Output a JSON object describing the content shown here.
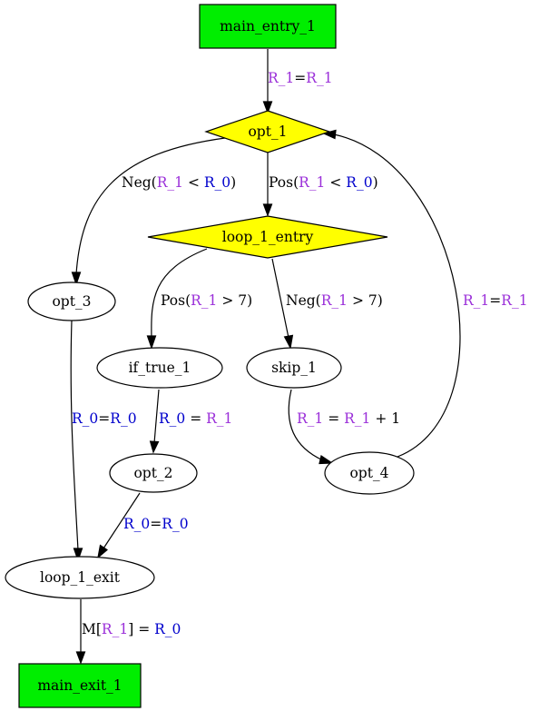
{
  "colors": {
    "entry_exit_fill": "#00ee00",
    "branch_fill": "#ffff00",
    "plain_fill": "#ffffff",
    "var_R1": "#9b30d9",
    "var_R0": "#0000cc",
    "text": "#000000"
  },
  "nodes": {
    "main_entry_1": "main_entry_1",
    "opt_1": "opt_1",
    "loop_1_entry": "loop_1_entry",
    "opt_3": "opt_3",
    "if_true_1": "if_true_1",
    "skip_1": "skip_1",
    "opt_2": "opt_2",
    "opt_4": "opt_4",
    "loop_1_exit": "loop_1_exit",
    "main_exit_1": "main_exit_1"
  },
  "edges": [
    {
      "id": "e1",
      "from": "main_entry_1",
      "to": "opt_1",
      "label": [
        {
          "t": "R_1",
          "c": "var_R1"
        },
        {
          "t": "=",
          "c": "text"
        },
        {
          "t": "R_1",
          "c": "var_R1"
        }
      ]
    },
    {
      "id": "e2",
      "from": "opt_1",
      "to": "opt_3",
      "label": [
        {
          "t": "Neg(",
          "c": "text"
        },
        {
          "t": "R_1",
          "c": "var_R1"
        },
        {
          "t": " < ",
          "c": "text"
        },
        {
          "t": "R_0",
          "c": "var_R0"
        },
        {
          "t": ")",
          "c": "text"
        }
      ]
    },
    {
      "id": "e3",
      "from": "opt_1",
      "to": "loop_1_entry",
      "label": [
        {
          "t": "Pos(",
          "c": "text"
        },
        {
          "t": "R_1",
          "c": "var_R1"
        },
        {
          "t": " < ",
          "c": "text"
        },
        {
          "t": "R_0",
          "c": "var_R0"
        },
        {
          "t": ")",
          "c": "text"
        }
      ]
    },
    {
      "id": "e4",
      "from": "loop_1_entry",
      "to": "if_true_1",
      "label": [
        {
          "t": "Pos(",
          "c": "text"
        },
        {
          "t": "R_1",
          "c": "var_R1"
        },
        {
          "t": " > 7)",
          "c": "text"
        }
      ]
    },
    {
      "id": "e5",
      "from": "loop_1_entry",
      "to": "skip_1",
      "label": [
        {
          "t": "Neg(",
          "c": "text"
        },
        {
          "t": "R_1",
          "c": "var_R1"
        },
        {
          "t": " > 7)",
          "c": "text"
        }
      ]
    },
    {
      "id": "e6",
      "from": "opt_4",
      "to": "opt_1",
      "label": [
        {
          "t": "R_1",
          "c": "var_R1"
        },
        {
          "t": "=",
          "c": "text"
        },
        {
          "t": "R_1",
          "c": "var_R1"
        }
      ]
    },
    {
      "id": "e7",
      "from": "opt_3",
      "to": "loop_1_exit",
      "label": [
        {
          "t": "R_0",
          "c": "var_R0"
        },
        {
          "t": "=",
          "c": "text"
        },
        {
          "t": "R_0",
          "c": "var_R0"
        }
      ]
    },
    {
      "id": "e8",
      "from": "if_true_1",
      "to": "opt_2",
      "label": [
        {
          "t": "R_0",
          "c": "var_R0"
        },
        {
          "t": " = ",
          "c": "text"
        },
        {
          "t": "R_1",
          "c": "var_R1"
        }
      ]
    },
    {
      "id": "e9",
      "from": "skip_1",
      "to": "opt_4",
      "label": [
        {
          "t": "R_1",
          "c": "var_R1"
        },
        {
          "t": " = ",
          "c": "text"
        },
        {
          "t": "R_1",
          "c": "var_R1"
        },
        {
          "t": " + 1",
          "c": "text"
        }
      ]
    },
    {
      "id": "e10",
      "from": "opt_2",
      "to": "loop_1_exit",
      "label": [
        {
          "t": "R_0",
          "c": "var_R0"
        },
        {
          "t": "=",
          "c": "text"
        },
        {
          "t": "R_0",
          "c": "var_R0"
        }
      ]
    },
    {
      "id": "e11",
      "from": "loop_1_exit",
      "to": "main_exit_1",
      "label": [
        {
          "t": "M[",
          "c": "text"
        },
        {
          "t": "R_1",
          "c": "var_R1"
        },
        {
          "t": "] = ",
          "c": "text"
        },
        {
          "t": "R_0",
          "c": "var_R0"
        }
      ]
    }
  ]
}
